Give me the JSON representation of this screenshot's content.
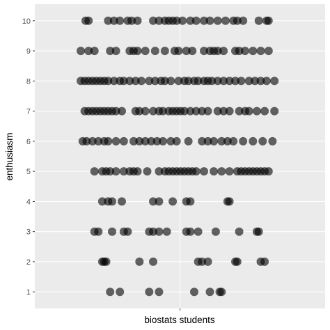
{
  "chart_data": {
    "type": "scatter",
    "title": "",
    "xlabel": "biostats students",
    "ylabel": "enthusiasm",
    "ylim": [
      0.45,
      10.55
    ],
    "xlim": [
      0,
      1
    ],
    "yticks": [
      "1",
      "2",
      "3",
      "4",
      "5",
      "6",
      "7",
      "8",
      "9",
      "10"
    ],
    "grid": true,
    "x_is_jitter": true,
    "colors": {
      "panel": "#ebebeb",
      "grid": "#ffffff",
      "point": "#000000"
    },
    "point_alpha": 0.6,
    "series": [
      {
        "y": 10,
        "x": [
          0.025,
          0.04,
          0.14,
          0.17,
          0.2,
          0.24,
          0.26,
          0.29,
          0.37,
          0.4,
          0.43,
          0.45,
          0.47,
          0.49,
          0.52,
          0.56,
          0.59,
          0.63,
          0.66,
          0.7,
          0.74,
          0.78,
          0.8,
          0.83,
          0.91,
          0.95,
          0.96
        ]
      },
      {
        "y": 9,
        "x": [
          0.0,
          0.04,
          0.07,
          0.15,
          0.18,
          0.25,
          0.27,
          0.29,
          0.33,
          0.38,
          0.43,
          0.48,
          0.5,
          0.54,
          0.57,
          0.63,
          0.66,
          0.68,
          0.7,
          0.73,
          0.79,
          0.81,
          0.84,
          0.88,
          0.92,
          0.96
        ]
      },
      {
        "y": 8,
        "x": [
          0.0,
          0.02,
          0.04,
          0.06,
          0.08,
          0.1,
          0.12,
          0.14,
          0.17,
          0.2,
          0.22,
          0.25,
          0.28,
          0.31,
          0.35,
          0.38,
          0.41,
          0.43,
          0.46,
          0.5,
          0.53,
          0.55,
          0.58,
          0.6,
          0.63,
          0.65,
          0.67,
          0.7,
          0.73,
          0.76,
          0.79,
          0.82,
          0.86,
          0.89,
          0.92,
          0.95,
          0.99
        ]
      },
      {
        "y": 7,
        "x": [
          0.02,
          0.04,
          0.06,
          0.08,
          0.1,
          0.12,
          0.14,
          0.16,
          0.18,
          0.21,
          0.28,
          0.3,
          0.33,
          0.37,
          0.4,
          0.42,
          0.45,
          0.47,
          0.49,
          0.51,
          0.53,
          0.56,
          0.59,
          0.62,
          0.65,
          0.7,
          0.73,
          0.76,
          0.81,
          0.84,
          0.86,
          0.9,
          0.94,
          0.99
        ]
      },
      {
        "y": 6,
        "x": [
          0.01,
          0.03,
          0.06,
          0.09,
          0.12,
          0.14,
          0.18,
          0.22,
          0.27,
          0.3,
          0.33,
          0.36,
          0.39,
          0.42,
          0.46,
          0.49,
          0.55,
          0.62,
          0.65,
          0.68,
          0.72,
          0.75,
          0.78,
          0.83,
          0.88,
          0.93,
          0.98
        ]
      },
      {
        "y": 5,
        "x": [
          0.07,
          0.11,
          0.13,
          0.15,
          0.18,
          0.22,
          0.25,
          0.27,
          0.29,
          0.34,
          0.4,
          0.43,
          0.45,
          0.47,
          0.49,
          0.51,
          0.53,
          0.55,
          0.57,
          0.59,
          0.63,
          0.68,
          0.72,
          0.76,
          0.8,
          0.82,
          0.84,
          0.86,
          0.88,
          0.9,
          0.92,
          0.94,
          0.96
        ]
      },
      {
        "y": 4,
        "x": [
          0.11,
          0.14,
          0.16,
          0.21,
          0.37,
          0.4,
          0.47,
          0.54,
          0.56,
          0.75,
          0.76
        ]
      },
      {
        "y": 3,
        "x": [
          0.07,
          0.09,
          0.16,
          0.22,
          0.24,
          0.35,
          0.37,
          0.4,
          0.44,
          0.54,
          0.56,
          0.6,
          0.69,
          0.81,
          0.9,
          0.91
        ]
      },
      {
        "y": 2,
        "x": [
          0.11,
          0.12,
          0.13,
          0.3,
          0.37,
          0.6,
          0.62,
          0.65,
          0.79,
          0.8,
          0.92,
          0.94
        ]
      },
      {
        "y": 1,
        "x": [
          0.15,
          0.2,
          0.35,
          0.4,
          0.58,
          0.66,
          0.71,
          0.72
        ]
      }
    ]
  }
}
